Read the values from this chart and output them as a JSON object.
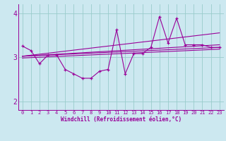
{
  "bg_color": "#cce8f0",
  "line_color": "#990099",
  "grid_color": "#99cccc",
  "xlabel": "Windchill (Refroidissement éolien,°C)",
  "ylim": [
    1.8,
    4.2
  ],
  "xlim": [
    -0.5,
    23.5
  ],
  "yticks": [
    2,
    3,
    4
  ],
  "xticks": [
    0,
    1,
    2,
    3,
    4,
    5,
    6,
    7,
    8,
    9,
    10,
    11,
    12,
    13,
    14,
    15,
    16,
    17,
    18,
    19,
    20,
    21,
    22,
    23
  ],
  "scatter_x": [
    0,
    1,
    2,
    3,
    4,
    5,
    6,
    7,
    8,
    9,
    10,
    11,
    12,
    13,
    14,
    15,
    16,
    17,
    18,
    19,
    20,
    21,
    22,
    23
  ],
  "scatter_y": [
    3.25,
    3.15,
    2.85,
    3.05,
    3.05,
    2.72,
    2.62,
    2.52,
    2.52,
    2.68,
    2.72,
    3.62,
    2.62,
    3.08,
    3.08,
    3.22,
    3.92,
    3.32,
    3.88,
    3.28,
    3.28,
    3.28,
    3.22,
    3.22
  ],
  "trend1_x": [
    0,
    23
  ],
  "trend1_y": [
    3.02,
    3.55
  ],
  "trend2_x": [
    0,
    23
  ],
  "trend2_y": [
    3.02,
    3.28
  ],
  "trend3_x": [
    0,
    23
  ],
  "trend3_y": [
    3.02,
    3.22
  ],
  "trend4_x": [
    0,
    23
  ],
  "trend4_y": [
    2.98,
    3.18
  ]
}
